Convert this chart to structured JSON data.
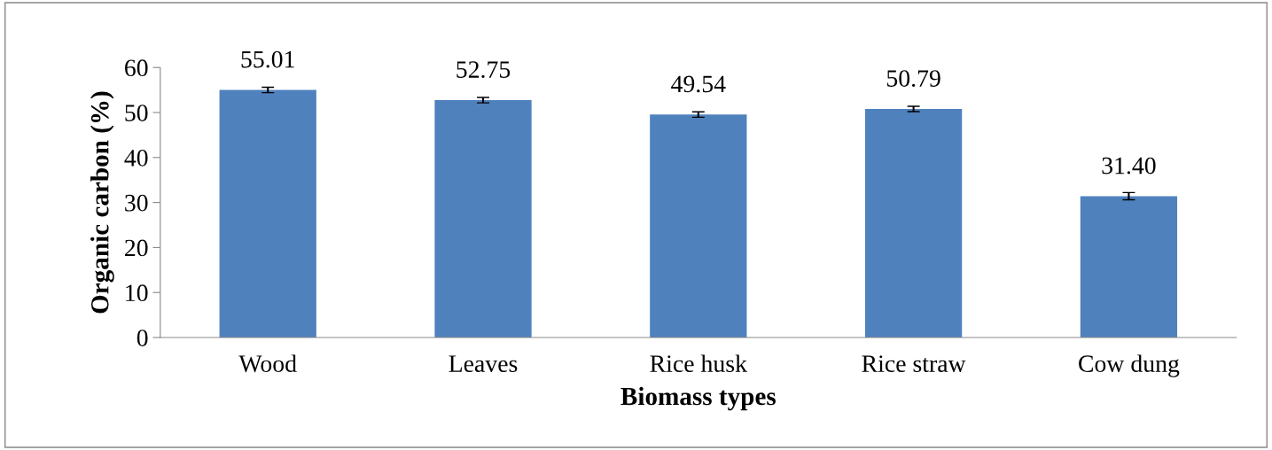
{
  "chart_data": {
    "type": "bar",
    "xlabel": "Biomass types",
    "ylabel": "Organic carbon (%)",
    "categories": [
      "Wood",
      "Leaves",
      "Rice husk",
      "Rice straw",
      "Cow dung"
    ],
    "values": [
      55.01,
      52.75,
      49.54,
      50.79,
      31.4
    ],
    "value_labels": [
      "55.01",
      "52.75",
      "49.54",
      "50.79",
      "31.40"
    ],
    "errors": [
      0.6,
      0.6,
      0.6,
      0.6,
      0.8
    ],
    "color": "#4f81bd",
    "ylim": [
      0,
      60
    ],
    "yticks": [
      0,
      10,
      20,
      30,
      40,
      50,
      60
    ],
    "grid": false,
    "legend": false
  }
}
